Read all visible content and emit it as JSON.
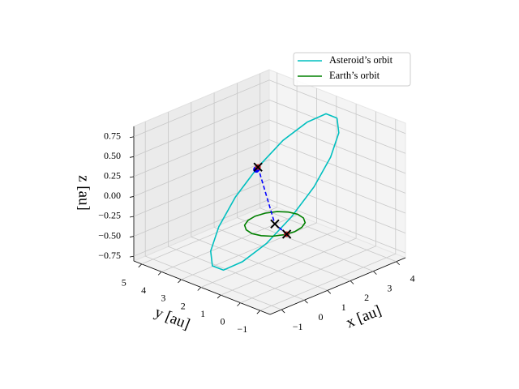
{
  "chart_data": {
    "type": "line3d",
    "xlabel": "x [au]",
    "ylabel": "y [au]",
    "zlabel": "z [au]",
    "xlim": [
      -1.5,
      4.4
    ],
    "ylim": [
      -1.5,
      5.4
    ],
    "zlim": [
      -0.81,
      0.88
    ],
    "xticks": [
      {
        "value": -1,
        "label": "−1"
      },
      0,
      1,
      2,
      3,
      4
    ],
    "yticks": [
      {
        "value": -1,
        "label": "−1"
      },
      0,
      1,
      2,
      3,
      4,
      5
    ],
    "zticks": [
      {
        "value": -0.75,
        "label": "−0.75"
      },
      {
        "value": -0.5,
        "label": "−0.50"
      },
      {
        "value": -0.25,
        "label": "−0.25"
      },
      {
        "value": 0,
        "label": "0.00"
      },
      0.25,
      {
        "value": 0.5,
        "label": "0.50"
      },
      0.75
    ],
    "grid": true,
    "legend": "upper right",
    "series": [
      {
        "name": "Asteroid’s orbit",
        "color": "#00bfbf",
        "x": [
          4.0,
          3.7,
          3.06,
          2.18,
          1.2,
          0.27,
          -0.48,
          -0.93,
          -1.0,
          -0.7,
          -0.06,
          0.82,
          1.8,
          2.73,
          3.48,
          3.93,
          4.0
        ],
        "y": [
          1.5,
          1.71,
          1.93,
          2.12,
          2.25,
          2.31,
          2.28,
          2.17,
          2.0,
          1.79,
          1.57,
          1.38,
          1.25,
          1.19,
          1.22,
          1.33,
          1.5
        ],
        "z": [
          0.7,
          0.77,
          0.72,
          0.58,
          0.35,
          0.08,
          -0.2,
          -0.44,
          -0.6,
          -0.67,
          -0.62,
          -0.48,
          -0.25,
          0.02,
          0.3,
          0.54,
          0.7
        ]
      },
      {
        "name": "Earth’s orbit",
        "color": "#008000",
        "x": [
          1,
          0.92,
          0.71,
          0.38,
          0,
          -0.38,
          -0.71,
          -0.92,
          -1,
          -0.92,
          -0.71,
          -0.38,
          0,
          0.38,
          0.71,
          0.92,
          1
        ],
        "y": [
          0,
          0.38,
          0.71,
          0.92,
          1,
          0.92,
          0.71,
          0.38,
          0,
          -0.38,
          -0.71,
          -0.92,
          -1,
          -0.92,
          -0.71,
          -0.38,
          0
        ],
        "z": [
          0,
          0,
          0,
          0,
          0,
          0,
          0,
          0,
          0,
          0,
          0,
          0,
          0,
          0,
          0,
          0,
          0
        ]
      }
    ],
    "connector": {
      "color": "#0000ff",
      "x": [
        1.2,
        0,
        -0.3
      ],
      "y": [
        2.25,
        0,
        -0.95
      ],
      "z": [
        0.35,
        0,
        0
      ]
    }
  }
}
